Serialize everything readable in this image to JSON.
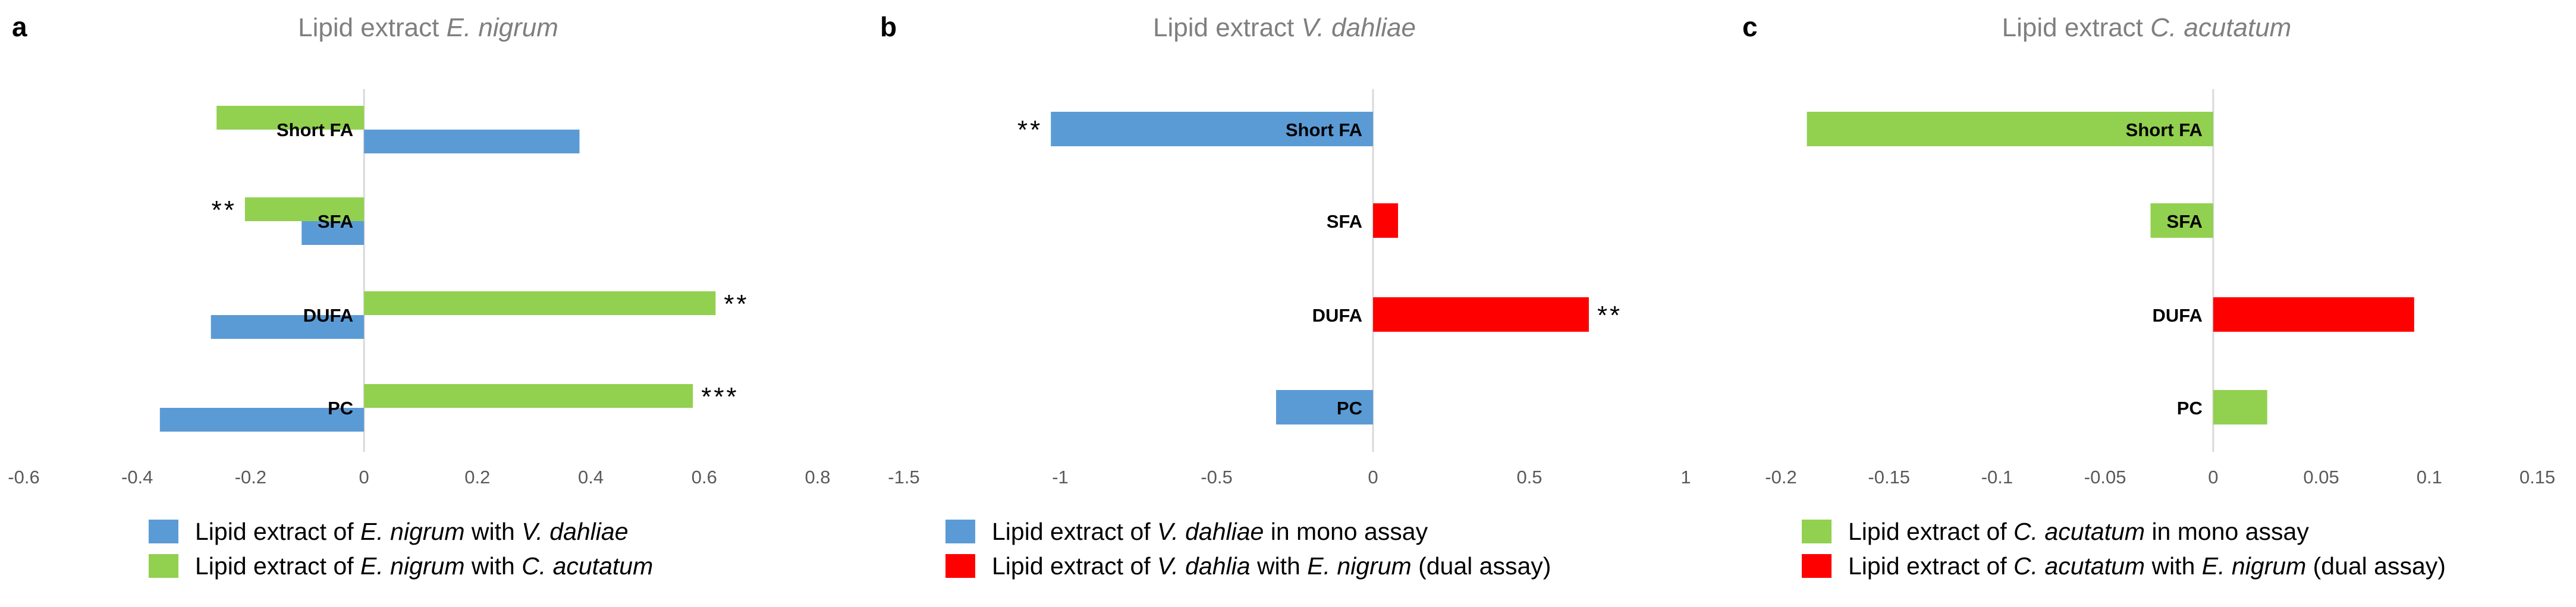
{
  "panels": [
    {
      "letter": "a",
      "title_prefix": "Lipid extract ",
      "title_italic": "E. nigrum",
      "legend": [
        {
          "parts": [
            {
              "t": "Lipid extract of "
            },
            {
              "t": "E. nigrum",
              "i": true
            },
            {
              "t": " with "
            },
            {
              "t": "V. dahliae",
              "i": true
            }
          ],
          "color": "#5b9bd5"
        },
        {
          "parts": [
            {
              "t": "Lipid extract of "
            },
            {
              "t": "E. nigrum",
              "i": true
            },
            {
              "t": " with "
            },
            {
              "t": "C. acutatum",
              "i": true
            }
          ],
          "color": "#92d050"
        }
      ]
    },
    {
      "letter": "b",
      "title_prefix": "Lipid extract ",
      "title_italic": "V. dahliae",
      "legend": [
        {
          "parts": [
            {
              "t": "Lipid extract of "
            },
            {
              "t": "V. dahliae",
              "i": true
            },
            {
              "t": " in mono assay"
            }
          ],
          "color": "#5b9bd5"
        },
        {
          "parts": [
            {
              "t": "Lipid extract of "
            },
            {
              "t": "V. dahlia",
              "i": true
            },
            {
              "t": " with "
            },
            {
              "t": "E. nigrum",
              "i": true
            },
            {
              "t": " (dual assay)"
            }
          ],
          "color": "#ff0000"
        }
      ]
    },
    {
      "letter": "c",
      "title_prefix": "Lipid extract ",
      "title_italic": "C. acutatum",
      "legend": [
        {
          "parts": [
            {
              "t": "Lipid extract of "
            },
            {
              "t": "C. acutatum",
              "i": true
            },
            {
              "t": " in mono assay"
            }
          ],
          "color": "#92d050"
        },
        {
          "parts": [
            {
              "t": "Lipid extract of "
            },
            {
              "t": "C. acutatum",
              "i": true
            },
            {
              "t": " with "
            },
            {
              "t": "E. nigrum",
              "i": true
            },
            {
              "t": " (dual assay)"
            }
          ],
          "color": "#ff0000"
        }
      ]
    }
  ],
  "chart_data": [
    {
      "type": "bar",
      "orientation": "horizontal",
      "categories": [
        "Short FA",
        "SFA",
        "DUFA",
        "PC"
      ],
      "xlim": [
        -0.6,
        0.8
      ],
      "xticks": [
        "-0.6",
        "-0.4",
        "-0.2",
        "0",
        "0.2",
        "0.4",
        "0.6",
        "0.8"
      ],
      "grid": false,
      "legend_position": "bottom",
      "series": [
        {
          "name": "Lipid extract of E. nigrum with V. dahliae",
          "color": "#5b9bd5",
          "values": [
            0.38,
            -0.11,
            -0.27,
            -0.36
          ],
          "significance": [
            "",
            "",
            "",
            ""
          ]
        },
        {
          "name": "Lipid extract of E. nigrum with C. acutatum",
          "color": "#92d050",
          "values": [
            -0.26,
            -0.21,
            0.62,
            0.58
          ],
          "significance": [
            "",
            "**",
            "**",
            "***"
          ]
        }
      ]
    },
    {
      "type": "bar",
      "orientation": "horizontal",
      "categories": [
        "Short FA",
        "SFA",
        "DUFA",
        "PC"
      ],
      "xlim": [
        -1.5,
        1
      ],
      "xticks": [
        "-1.5",
        "-1",
        "-0.5",
        "0",
        "0.5",
        "1"
      ],
      "grid": false,
      "legend_position": "bottom",
      "series": [
        {
          "name": "Lipid extract of V. dahliae in mono assay",
          "color": "#5b9bd5",
          "values": [
            -1.03,
            null,
            null,
            -0.31
          ],
          "significance": [
            "**",
            "",
            "",
            ""
          ]
        },
        {
          "name": "Lipid extract of V. dahlia with E. nigrum (dual assay)",
          "color": "#ff0000",
          "values": [
            null,
            0.08,
            0.69,
            null
          ],
          "significance": [
            "",
            "",
            "**",
            ""
          ]
        }
      ]
    },
    {
      "type": "bar",
      "orientation": "horizontal",
      "categories": [
        "Short FA",
        "SFA",
        "DUFA",
        "PC"
      ],
      "xlim": [
        -0.2,
        0.15
      ],
      "xticks": [
        "-0.2",
        "-0.15",
        "-0.1",
        "-0.05",
        "0",
        "0.05",
        "0.1",
        "0.15"
      ],
      "grid": false,
      "legend_position": "bottom",
      "series": [
        {
          "name": "Lipid extract of C. acutatum in mono assay",
          "color": "#92d050",
          "values": [
            -0.188,
            -0.029,
            null,
            0.025
          ],
          "significance": [
            "",
            "",
            "",
            ""
          ]
        },
        {
          "name": "Lipid extract of C. acutatum with E. nigrum (dual assay)",
          "color": "#ff0000",
          "values": [
            null,
            null,
            0.093,
            null
          ],
          "significance": [
            "",
            "",
            "",
            ""
          ]
        }
      ]
    }
  ]
}
